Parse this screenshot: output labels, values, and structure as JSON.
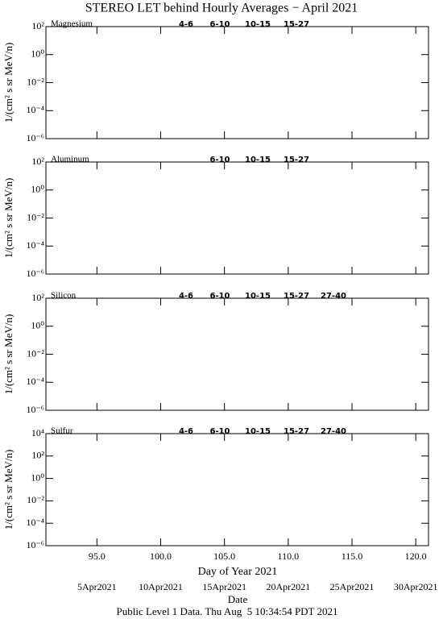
{
  "title": "STEREO LET behind Hourly Averages − April 2021",
  "x_label": "Day of Year 2021",
  "date_label": "Date",
  "footer": "Public Level 1 Data. Thu Aug  5 10:34:54 PDT 2021",
  "date_ticks": [
    {
      "value": 95,
      "label": "5Apr2021"
    },
    {
      "value": 100,
      "label": "10Apr2021"
    },
    {
      "value": 105,
      "label": "15Apr2021"
    },
    {
      "value": 110,
      "label": "20Apr2021"
    },
    {
      "value": 115,
      "label": "25Apr2021"
    },
    {
      "value": 120,
      "label": "30Apr2021"
    }
  ],
  "chart_data": [
    {
      "type": "line",
      "label": "Magnesium",
      "ylabel": "1/(cm² s sr MeV/n)",
      "ylog": true,
      "ylim": [
        1e-06,
        100
      ],
      "yticks": [
        {
          "value": 100,
          "label": "10²"
        },
        {
          "value": 1,
          "label": "10⁰"
        },
        {
          "value": 0.01,
          "label": "10⁻²"
        },
        {
          "value": 0.0001,
          "label": "10⁻⁴"
        },
        {
          "value": 1e-06,
          "label": "10⁻⁶"
        }
      ],
      "xlim": [
        91,
        121
      ],
      "xticks": [
        95,
        100,
        105,
        110,
        115,
        120
      ],
      "series": [
        {
          "name": "4-6",
          "color": "#b00000"
        },
        {
          "name": "6-10",
          "color": "#ff0000"
        },
        {
          "name": "10-15",
          "color": "#909090"
        },
        {
          "name": "15-27",
          "color": "#0000ff"
        }
      ]
    },
    {
      "type": "line",
      "label": "Aluminum",
      "ylabel": "1/(cm² s sr MeV/n)",
      "ylog": true,
      "ylim": [
        1e-06,
        100
      ],
      "yticks": [
        {
          "value": 100,
          "label": "10²"
        },
        {
          "value": 1,
          "label": "10⁰"
        },
        {
          "value": 0.01,
          "label": "10⁻²"
        },
        {
          "value": 0.0001,
          "label": "10⁻⁴"
        },
        {
          "value": 1e-06,
          "label": "10⁻⁶"
        }
      ],
      "xlim": [
        91,
        121
      ],
      "xticks": [
        95,
        100,
        105,
        110,
        115,
        120
      ],
      "series": [
        {
          "name": "6-10",
          "color": "#ff0000"
        },
        {
          "name": "10-15",
          "color": "#909090"
        },
        {
          "name": "15-27",
          "color": "#0000ff"
        }
      ]
    },
    {
      "type": "line",
      "label": "Silicon",
      "ylabel": "1/(cm² s sr MeV/n)",
      "ylog": true,
      "ylim": [
        1e-06,
        100
      ],
      "yticks": [
        {
          "value": 100,
          "label": "10²"
        },
        {
          "value": 1,
          "label": "10⁰"
        },
        {
          "value": 0.01,
          "label": "10⁻²"
        },
        {
          "value": 0.0001,
          "label": "10⁻⁴"
        },
        {
          "value": 1e-06,
          "label": "10⁻⁶"
        }
      ],
      "xlim": [
        91,
        121
      ],
      "xticks": [
        95,
        100,
        105,
        110,
        115,
        120
      ],
      "series": [
        {
          "name": "4-6",
          "color": "#b00000"
        },
        {
          "name": "6-10",
          "color": "#ff0000"
        },
        {
          "name": "10-15",
          "color": "#909090"
        },
        {
          "name": "15-27",
          "color": "#0000ff"
        },
        {
          "name": "27-40",
          "color": "#000000"
        }
      ]
    },
    {
      "type": "line",
      "label": "Sulfur",
      "ylabel": "1/(cm² s sr MeV/n)",
      "ylog": true,
      "ylim": [
        1e-06,
        10000
      ],
      "yticks": [
        {
          "value": 10000,
          "label": "10⁴"
        },
        {
          "value": 100,
          "label": "10²"
        },
        {
          "value": 1,
          "label": "10⁰"
        },
        {
          "value": 0.01,
          "label": "10⁻²"
        },
        {
          "value": 0.0001,
          "label": "10⁻⁴"
        },
        {
          "value": 1e-06,
          "label": "10⁻⁶"
        }
      ],
      "xlim": [
        91,
        121
      ],
      "xticks": [
        {
          "value": 95,
          "label": "95.0"
        },
        {
          "value": 100,
          "label": "100.0"
        },
        {
          "value": 105,
          "label": "105.0"
        },
        {
          "value": 110,
          "label": "110.0"
        },
        {
          "value": 115,
          "label": "115.0"
        },
        {
          "value": 120,
          "label": "120.0"
        }
      ],
      "series": [
        {
          "name": "4-6",
          "color": "#b00000"
        },
        {
          "name": "6-10",
          "color": "#ff0000"
        },
        {
          "name": "10-15",
          "color": "#909090"
        },
        {
          "name": "15-27",
          "color": "#0000ff"
        },
        {
          "name": "27-40",
          "color": "#000000"
        }
      ]
    }
  ]
}
